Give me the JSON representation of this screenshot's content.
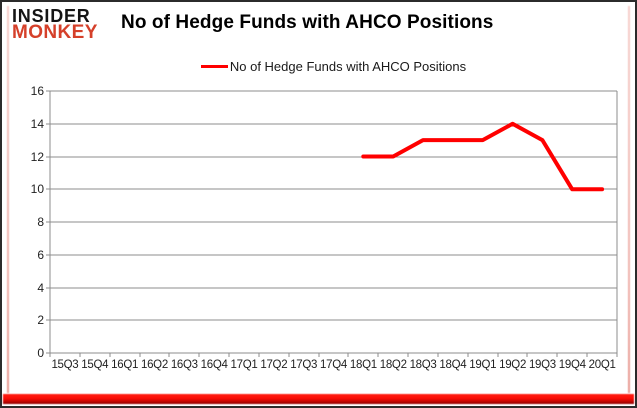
{
  "logo": {
    "line1": "INSIDER",
    "line2": "MONKEY"
  },
  "title": "No of Hedge Funds with AHCO Positions",
  "legend": {
    "label": "No of Hedge Funds with AHCO Positions"
  },
  "colors": {
    "series": "#ff0000",
    "grid": "#8c8c8c",
    "axis_text": "#1f1f1f",
    "logo_black": "#141414",
    "logo_red": "#d5402a",
    "bottom_glow": "#fb0d05",
    "side_glow": "#efb3ad"
  },
  "chart_data": {
    "type": "line",
    "title": "No of Hedge Funds with AHCO Positions",
    "categories": [
      "15Q3",
      "15Q4",
      "16Q1",
      "16Q2",
      "16Q3",
      "16Q4",
      "17Q1",
      "17Q2",
      "17Q3",
      "17Q4",
      "18Q1",
      "18Q2",
      "18Q3",
      "18Q4",
      "19Q1",
      "19Q2",
      "19Q3",
      "19Q4",
      "20Q1"
    ],
    "series": [
      {
        "name": "No of Hedge Funds with AHCO Positions",
        "color": "#ff0000",
        "values": [
          null,
          null,
          null,
          null,
          null,
          null,
          null,
          null,
          null,
          null,
          12,
          12,
          13,
          13,
          13,
          14,
          13,
          10,
          10
        ]
      }
    ],
    "ylim": [
      0,
      16
    ],
    "yticks": [
      0,
      2,
      4,
      6,
      8,
      10,
      12,
      14,
      16
    ],
    "grid": true,
    "legend_position": "top"
  }
}
